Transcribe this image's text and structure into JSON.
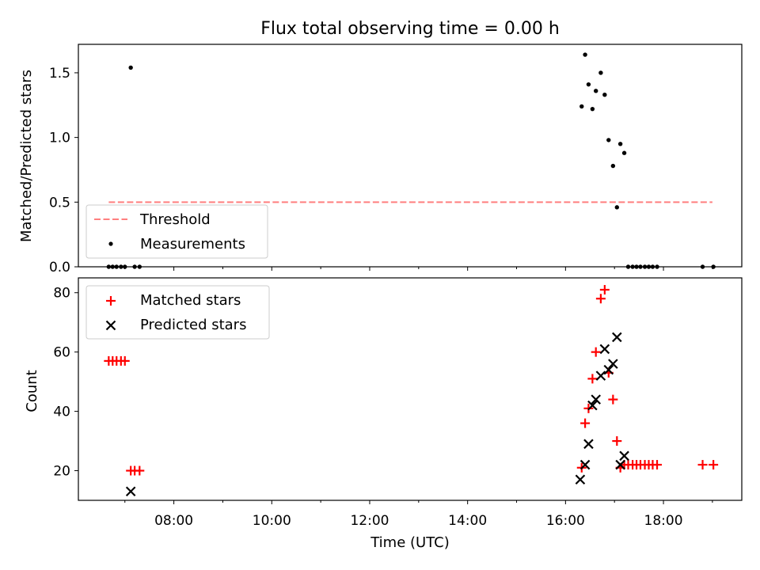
{
  "figure": {
    "title": "Flux total observing time = 0.00 h"
  },
  "chart_data": [
    {
      "type": "scatter",
      "ylabel": "Matched/Predicted stars",
      "xlabel": "",
      "xlim": [
        6.05,
        19.6
      ],
      "ylim": [
        0.0,
        1.72
      ],
      "yticks": [
        0.0,
        0.5,
        1.0,
        1.5
      ],
      "ytick_labels": [
        "0.0",
        "0.5",
        "1.0",
        "1.5"
      ],
      "grid": false,
      "legend_position": "lower-left",
      "legend": [
        {
          "label": "Threshold",
          "marker": "dashed-line",
          "color": "#ff7f7f"
        },
        {
          "label": "Measurements",
          "marker": "dot",
          "color": "#000000"
        }
      ],
      "threshold": {
        "value": 0.5,
        "x_range": [
          6.67,
          19.0
        ],
        "color": "#ff7f7f"
      },
      "measurements": [
        [
          6.67,
          0
        ],
        [
          6.75,
          0
        ],
        [
          6.83,
          0
        ],
        [
          6.92,
          0
        ],
        [
          7.0,
          0
        ],
        [
          7.12,
          1.54
        ],
        [
          7.2,
          0
        ],
        [
          7.3,
          0
        ],
        [
          16.33,
          1.24
        ],
        [
          16.4,
          1.64
        ],
        [
          16.47,
          1.41
        ],
        [
          16.55,
          1.22
        ],
        [
          16.62,
          1.36
        ],
        [
          16.72,
          1.5
        ],
        [
          16.8,
          1.33
        ],
        [
          16.88,
          0.98
        ],
        [
          16.97,
          0.78
        ],
        [
          17.05,
          0.46
        ],
        [
          17.12,
          0.95
        ],
        [
          17.2,
          0.88
        ],
        [
          17.28,
          0
        ],
        [
          17.37,
          0
        ],
        [
          17.45,
          0
        ],
        [
          17.53,
          0
        ],
        [
          17.62,
          0
        ],
        [
          17.7,
          0
        ],
        [
          17.78,
          0
        ],
        [
          17.87,
          0
        ],
        [
          18.8,
          0
        ],
        [
          19.02,
          0
        ]
      ]
    },
    {
      "type": "scatter",
      "ylabel": "Count",
      "xlabel": "Time (UTC)",
      "xlim": [
        6.05,
        19.6
      ],
      "ylim": [
        10.0,
        85.0
      ],
      "yticks": [
        20,
        40,
        60,
        80
      ],
      "ytick_labels": [
        "20",
        "40",
        "60",
        "80"
      ],
      "xticks": [
        8,
        10,
        12,
        14,
        16,
        18
      ],
      "xtick_labels": [
        "08:00",
        "10:00",
        "12:00",
        "14:00",
        "16:00",
        "18:00"
      ],
      "grid": false,
      "legend_position": "upper-left",
      "series": [
        {
          "name": "Matched stars",
          "marker": "plus",
          "color": "#ff0000",
          "points": [
            [
              6.67,
              57
            ],
            [
              6.75,
              57
            ],
            [
              6.83,
              57
            ],
            [
              6.92,
              57
            ],
            [
              7.0,
              57
            ],
            [
              7.12,
              20
            ],
            [
              7.2,
              20
            ],
            [
              7.3,
              20
            ],
            [
              16.33,
              21
            ],
            [
              16.4,
              36
            ],
            [
              16.47,
              41
            ],
            [
              16.55,
              51
            ],
            [
              16.62,
              60
            ],
            [
              16.72,
              78
            ],
            [
              16.8,
              81
            ],
            [
              16.88,
              53
            ],
            [
              16.97,
              44
            ],
            [
              17.05,
              30
            ],
            [
              17.12,
              21
            ],
            [
              17.2,
              22
            ],
            [
              17.28,
              22
            ],
            [
              17.37,
              22
            ],
            [
              17.45,
              22
            ],
            [
              17.53,
              22
            ],
            [
              17.62,
              22
            ],
            [
              17.7,
              22
            ],
            [
              17.78,
              22
            ],
            [
              17.87,
              22
            ],
            [
              18.8,
              22
            ],
            [
              19.02,
              22
            ]
          ]
        },
        {
          "name": "Predicted stars",
          "marker": "cross",
          "color": "#000000",
          "points": [
            [
              7.12,
              13
            ],
            [
              16.3,
              17
            ],
            [
              16.4,
              22
            ],
            [
              16.47,
              29
            ],
            [
              16.55,
              42
            ],
            [
              16.62,
              44
            ],
            [
              16.72,
              52
            ],
            [
              16.8,
              61
            ],
            [
              16.88,
              54
            ],
            [
              16.97,
              56
            ],
            [
              17.05,
              65
            ],
            [
              17.12,
              22
            ],
            [
              17.2,
              25
            ]
          ]
        }
      ]
    }
  ]
}
